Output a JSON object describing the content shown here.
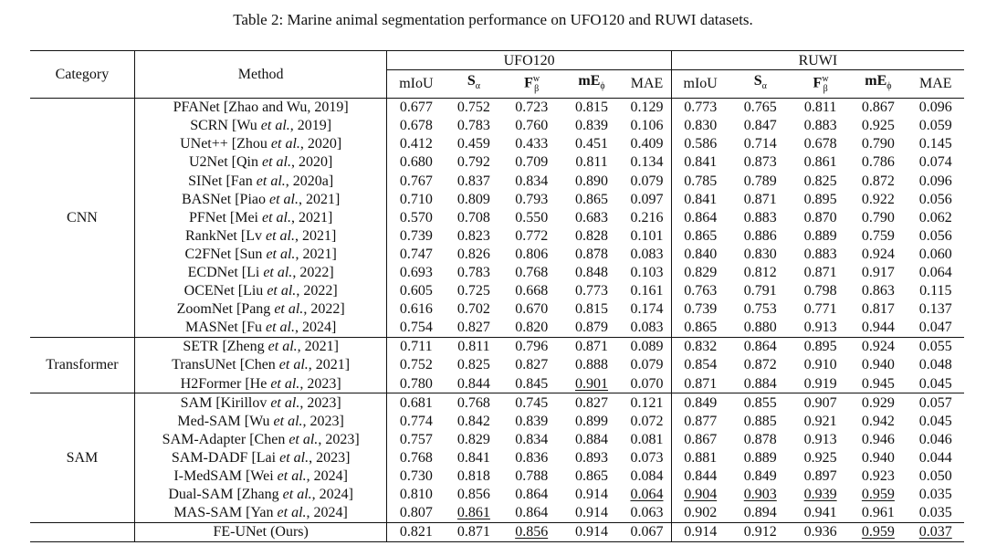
{
  "caption": "Table 2: Marine animal segmentation performance on UFO120 and RUWI datasets.",
  "header": {
    "category": "Category",
    "method": "Method",
    "datasets": [
      "UFO120",
      "RUWI"
    ],
    "metrics": [
      "mIoU",
      "Sα",
      "Fwβ",
      "mEϕ",
      "MAE"
    ]
  },
  "groups": [
    {
      "category": "CNN",
      "rows": [
        {
          "method": "PFANet [Zhao and Wu, 2019]",
          "ufo": [
            "0.677",
            "0.752",
            "0.723",
            "0.815",
            "0.129"
          ],
          "ruwi": [
            "0.773",
            "0.765",
            "0.811",
            "0.867",
            "0.096"
          ]
        },
        {
          "method": "SCRN [Wu et al., 2019]",
          "ufo": [
            "0.678",
            "0.783",
            "0.760",
            "0.839",
            "0.106"
          ],
          "ruwi": [
            "0.830",
            "0.847",
            "0.883",
            "0.925",
            "0.059"
          ]
        },
        {
          "method": "UNet++ [Zhou et al., 2020]",
          "ufo": [
            "0.412",
            "0.459",
            "0.433",
            "0.451",
            "0.409"
          ],
          "ruwi": [
            "0.586",
            "0.714",
            "0.678",
            "0.790",
            "0.145"
          ]
        },
        {
          "method": "U2Net [Qin et al., 2020]",
          "ufo": [
            "0.680",
            "0.792",
            "0.709",
            "0.811",
            "0.134"
          ],
          "ruwi": [
            "0.841",
            "0.873",
            "0.861",
            "0.786",
            "0.074"
          ]
        },
        {
          "method": "SINet [Fan et al., 2020a]",
          "ufo": [
            "0.767",
            "0.837",
            "0.834",
            "0.890",
            "0.079"
          ],
          "ruwi": [
            "0.785",
            "0.789",
            "0.825",
            "0.872",
            "0.096"
          ]
        },
        {
          "method": "BASNet [Piao et al., 2021]",
          "ufo": [
            "0.710",
            "0.809",
            "0.793",
            "0.865",
            "0.097"
          ],
          "ruwi": [
            "0.841",
            "0.871",
            "0.895",
            "0.922",
            "0.056"
          ]
        },
        {
          "method": "PFNet [Mei et al., 2021]",
          "ufo": [
            "0.570",
            "0.708",
            "0.550",
            "0.683",
            "0.216"
          ],
          "ruwi": [
            "0.864",
            "0.883",
            "0.870",
            "0.790",
            "0.062"
          ]
        },
        {
          "method": "RankNet [Lv et al., 2021]",
          "ufo": [
            "0.739",
            "0.823",
            "0.772",
            "0.828",
            "0.101"
          ],
          "ruwi": [
            "0.865",
            "0.886",
            "0.889",
            "0.759",
            "0.056"
          ]
        },
        {
          "method": "C2FNet [Sun et al., 2021]",
          "ufo": [
            "0.747",
            "0.826",
            "0.806",
            "0.878",
            "0.083"
          ],
          "ruwi": [
            "0.840",
            "0.830",
            "0.883",
            "0.924",
            "0.060"
          ]
        },
        {
          "method": "ECDNet [Li et al., 2022]",
          "ufo": [
            "0.693",
            "0.783",
            "0.768",
            "0.848",
            "0.103"
          ],
          "ruwi": [
            "0.829",
            "0.812",
            "0.871",
            "0.917",
            "0.064"
          ]
        },
        {
          "method": "OCENet [Liu et al., 2022]",
          "ufo": [
            "0.605",
            "0.725",
            "0.668",
            "0.773",
            "0.161"
          ],
          "ruwi": [
            "0.763",
            "0.791",
            "0.798",
            "0.863",
            "0.115"
          ]
        },
        {
          "method": "ZoomNet [Pang et al., 2022]",
          "ufo": [
            "0.616",
            "0.702",
            "0.670",
            "0.815",
            "0.174"
          ],
          "ruwi": [
            "0.739",
            "0.753",
            "0.771",
            "0.817",
            "0.137"
          ]
        },
        {
          "method": "MASNet [Fu et al., 2024]",
          "ufo": [
            "0.754",
            "0.827",
            "0.820",
            "0.879",
            "0.083"
          ],
          "ruwi": [
            "0.865",
            "0.880",
            "0.913",
            "0.944",
            "0.047"
          ]
        }
      ]
    },
    {
      "category": "Transformer",
      "rows": [
        {
          "method": "SETR [Zheng et al., 2021]",
          "ufo": [
            "0.711",
            "0.811",
            "0.796",
            "0.871",
            "0.089"
          ],
          "ruwi": [
            "0.832",
            "0.864",
            "0.895",
            "0.924",
            "0.055"
          ]
        },
        {
          "method": "TransUNet [Chen et al., 2021]",
          "ufo": [
            "0.752",
            "0.825",
            "0.827",
            "0.888",
            "0.079"
          ],
          "ruwi": [
            "0.854",
            "0.872",
            "0.910",
            "0.940",
            "0.048"
          ]
        },
        {
          "method": "H2Former [He et al., 2023]",
          "ufo": [
            "0.780",
            "0.844",
            "0.845",
            "0.901",
            "0.070"
          ],
          "ruwi": [
            "0.871",
            "0.884",
            "0.919",
            "0.945",
            "0.045"
          ],
          "ufo_fmt": [
            "",
            "",
            "",
            "u",
            ""
          ]
        }
      ]
    },
    {
      "category": "SAM",
      "rows": [
        {
          "method": "SAM [Kirillov et al., 2023]",
          "ufo": [
            "0.681",
            "0.768",
            "0.745",
            "0.827",
            "0.121"
          ],
          "ruwi": [
            "0.849",
            "0.855",
            "0.907",
            "0.929",
            "0.057"
          ]
        },
        {
          "method": "Med-SAM [Wu et al., 2023]",
          "ufo": [
            "0.774",
            "0.842",
            "0.839",
            "0.899",
            "0.072"
          ],
          "ruwi": [
            "0.877",
            "0.885",
            "0.921",
            "0.942",
            "0.045"
          ]
        },
        {
          "method": "SAM-Adapter [Chen et al., 2023]",
          "ufo": [
            "0.757",
            "0.829",
            "0.834",
            "0.884",
            "0.081"
          ],
          "ruwi": [
            "0.867",
            "0.878",
            "0.913",
            "0.946",
            "0.046"
          ]
        },
        {
          "method": "SAM-DADF [Lai et al., 2023]",
          "ufo": [
            "0.768",
            "0.841",
            "0.836",
            "0.893",
            "0.073"
          ],
          "ruwi": [
            "0.881",
            "0.889",
            "0.925",
            "0.940",
            "0.044"
          ]
        },
        {
          "method": "I-MedSAM [Wei et al., 2024]",
          "ufo": [
            "0.730",
            "0.818",
            "0.788",
            "0.865",
            "0.084"
          ],
          "ruwi": [
            "0.844",
            "0.849",
            "0.897",
            "0.923",
            "0.050"
          ]
        },
        {
          "method": "Dual-SAM [Zhang et al., 2024]",
          "ufo": [
            "0.810",
            "0.856",
            "0.864",
            "0.914",
            "0.064"
          ],
          "ruwi": [
            "0.904",
            "0.903",
            "0.939",
            "0.959",
            "0.035"
          ],
          "ufo_fmt": [
            "",
            "",
            "b",
            "b",
            "u"
          ],
          "ruwi_fmt": [
            "u",
            "u",
            "u",
            "u",
            ""
          ]
        },
        {
          "method": "MAS-SAM [Yan et al., 2024]",
          "ufo": [
            "0.807",
            "0.861",
            "0.864",
            "0.914",
            "0.063"
          ],
          "ruwi": [
            "0.902",
            "0.894",
            "0.941",
            "0.961",
            "0.035"
          ],
          "ufo_fmt": [
            "",
            "u",
            "b",
            "b",
            "b"
          ],
          "ruwi_fmt": [
            "",
            "",
            "b",
            "b",
            "b"
          ]
        }
      ]
    }
  ],
  "final": {
    "method": "FE-UNet (Ours)",
    "ufo": [
      "0.821",
      "0.871",
      "0.856",
      "0.914",
      "0.067"
    ],
    "ruwi": [
      "0.914",
      "0.912",
      "0.936",
      "0.959",
      "0.037"
    ],
    "ufo_fmt": [
      "b",
      "b",
      "u",
      "b",
      ""
    ],
    "ruwi_fmt": [
      "b",
      "b",
      "",
      "u",
      "u"
    ]
  }
}
